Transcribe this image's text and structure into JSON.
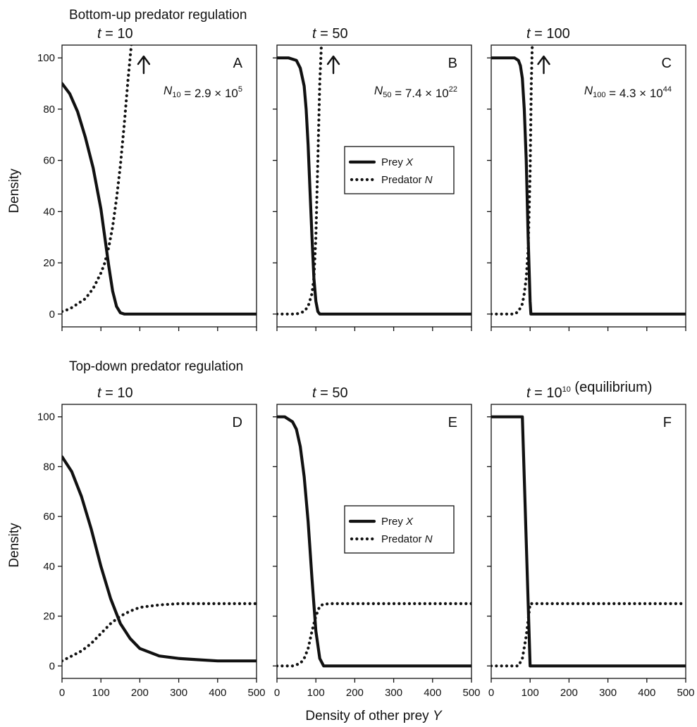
{
  "section_titles": [
    "Bottom-up predator regulation",
    "Top-down predator regulation"
  ],
  "ylabel": "Density",
  "xlabel": "Density of other prey Y",
  "legend": {
    "prey": "Prey X",
    "predator": "Predator N"
  },
  "colors": {
    "ink": "#111111",
    "background": "#ffffff"
  },
  "chart_data": [
    {
      "panel": "A",
      "type": "line",
      "row": "bottom-up",
      "title": "t = 10",
      "xlim": [
        0,
        500
      ],
      "ylim": [
        -5,
        105
      ],
      "xticks": [
        0,
        100,
        200,
        300,
        400,
        500
      ],
      "yticks": [
        0,
        20,
        40,
        60,
        80,
        100
      ],
      "annotation": "N10 = 2.9 × 10^5",
      "arrow_x": 210,
      "series": [
        {
          "name": "Prey X",
          "style": "solid",
          "x": [
            0,
            20,
            40,
            60,
            80,
            100,
            110,
            120,
            130,
            140,
            150,
            160,
            200,
            300,
            400,
            500
          ],
          "y": [
            90,
            86,
            79,
            69,
            57,
            41,
            30,
            19,
            9,
            3,
            0.5,
            0,
            0,
            0,
            0,
            0
          ]
        },
        {
          "name": "Predator N",
          "style": "dotted",
          "x": [
            0,
            20,
            40,
            60,
            80,
            100,
            110,
            120,
            130,
            140,
            150,
            160,
            170,
            180
          ],
          "y": [
            1,
            2,
            4,
            6,
            10,
            16,
            20,
            26,
            34,
            45,
            58,
            74,
            92,
            108
          ]
        }
      ]
    },
    {
      "panel": "B",
      "type": "line",
      "row": "bottom-up",
      "title": "t = 50",
      "xlim": [
        0,
        500
      ],
      "ylim": [
        -5,
        105
      ],
      "xticks": [
        0,
        100,
        200,
        300,
        400,
        500
      ],
      "yticks": [
        0,
        20,
        40,
        60,
        80,
        100
      ],
      "annotation": "N50 = 7.4 × 10^22",
      "arrow_x": 145,
      "series": [
        {
          "name": "Prey X",
          "style": "solid",
          "x": [
            0,
            30,
            50,
            60,
            70,
            75,
            80,
            85,
            90,
            95,
            100,
            105,
            110,
            200,
            300,
            400,
            500
          ],
          "y": [
            100,
            100,
            99,
            96,
            89,
            80,
            66,
            48,
            30,
            14,
            5,
            1,
            0,
            0,
            0,
            0,
            0
          ]
        },
        {
          "name": "Predator N",
          "style": "dotted",
          "x": [
            0,
            50,
            70,
            80,
            90,
            95,
            100,
            105,
            110,
            115
          ],
          "y": [
            0,
            0,
            1,
            3,
            8,
            14,
            30,
            60,
            90,
            108
          ]
        }
      ]
    },
    {
      "panel": "C",
      "type": "line",
      "row": "bottom-up",
      "title": "t = 100",
      "xlim": [
        0,
        500
      ],
      "ylim": [
        -5,
        105
      ],
      "xticks": [
        0,
        100,
        200,
        300,
        400,
        500
      ],
      "yticks": [
        0,
        20,
        40,
        60,
        80,
        100
      ],
      "annotation": "N100 = 4.3 × 10^44",
      "arrow_x": 135,
      "series": [
        {
          "name": "Prey X",
          "style": "solid",
          "x": [
            0,
            60,
            70,
            75,
            80,
            85,
            90,
            95,
            100,
            102,
            200,
            300,
            400,
            500
          ],
          "y": [
            100,
            100,
            99,
            97,
            92,
            80,
            60,
            30,
            5,
            0,
            0,
            0,
            0,
            0
          ]
        },
        {
          "name": "Predator N",
          "style": "dotted",
          "x": [
            0,
            60,
            70,
            80,
            85,
            90,
            95,
            100,
            103,
            106
          ],
          "y": [
            0,
            0,
            1,
            4,
            8,
            14,
            25,
            55,
            90,
            108
          ]
        }
      ]
    },
    {
      "panel": "D",
      "type": "line",
      "row": "top-down",
      "title": "t = 10",
      "xlim": [
        0,
        500
      ],
      "ylim": [
        -5,
        105
      ],
      "xticks": [
        0,
        100,
        200,
        300,
        400,
        500
      ],
      "yticks": [
        0,
        20,
        40,
        60,
        80,
        100
      ],
      "series": [
        {
          "name": "Prey X",
          "style": "solid",
          "x": [
            0,
            25,
            50,
            75,
            100,
            125,
            150,
            175,
            200,
            250,
            300,
            350,
            400,
            450,
            500
          ],
          "y": [
            84,
            78,
            68,
            55,
            40,
            27,
            17,
            11,
            7,
            4,
            3,
            2.5,
            2,
            2,
            2
          ]
        },
        {
          "name": "Predator N",
          "style": "dotted",
          "x": [
            0,
            25,
            50,
            75,
            100,
            125,
            150,
            175,
            200,
            250,
            300,
            350,
            400,
            450,
            500
          ],
          "y": [
            2,
            4,
            6,
            9,
            13,
            17,
            20,
            22,
            23.5,
            24.5,
            25,
            25,
            25,
            25,
            25
          ]
        }
      ]
    },
    {
      "panel": "E",
      "type": "line",
      "row": "top-down",
      "title": "t = 50",
      "xlim": [
        0,
        500
      ],
      "ylim": [
        -5,
        105
      ],
      "xticks": [
        0,
        100,
        200,
        300,
        400,
        500
      ],
      "yticks": [
        0,
        20,
        40,
        60,
        80,
        100
      ],
      "series": [
        {
          "name": "Prey X",
          "style": "solid",
          "x": [
            0,
            20,
            40,
            50,
            60,
            70,
            80,
            90,
            100,
            110,
            120,
            200,
            300,
            400,
            500
          ],
          "y": [
            100,
            100,
            98,
            95,
            88,
            76,
            58,
            35,
            14,
            3,
            0,
            0,
            0,
            0,
            0
          ]
        },
        {
          "name": "Predator N",
          "style": "dotted",
          "x": [
            0,
            40,
            60,
            70,
            80,
            90,
            100,
            110,
            120,
            140,
            200,
            300,
            400,
            500
          ],
          "y": [
            0,
            0,
            1,
            3,
            7,
            14,
            20,
            24,
            24.8,
            25,
            25,
            25,
            25,
            25
          ]
        }
      ]
    },
    {
      "panel": "F",
      "type": "line",
      "row": "top-down",
      "title": "t = 10^10 (equilibrium)",
      "xlim": [
        0,
        500
      ],
      "ylim": [
        -5,
        105
      ],
      "xticks": [
        0,
        100,
        200,
        300,
        400,
        500
      ],
      "yticks": [
        0,
        20,
        40,
        60,
        80,
        100
      ],
      "series": [
        {
          "name": "Prey X",
          "style": "solid",
          "x": [
            0,
            80,
            100,
            102,
            200,
            300,
            400,
            500
          ],
          "y": [
            100,
            100,
            0,
            0,
            0,
            0,
            0,
            0
          ]
        },
        {
          "name": "Predator N",
          "style": "dotted",
          "x": [
            0,
            70,
            80,
            90,
            100,
            105,
            120,
            200,
            300,
            400,
            500
          ],
          "y": [
            0,
            0,
            3,
            12,
            25,
            25,
            25,
            25,
            25,
            25,
            25
          ]
        }
      ]
    }
  ]
}
